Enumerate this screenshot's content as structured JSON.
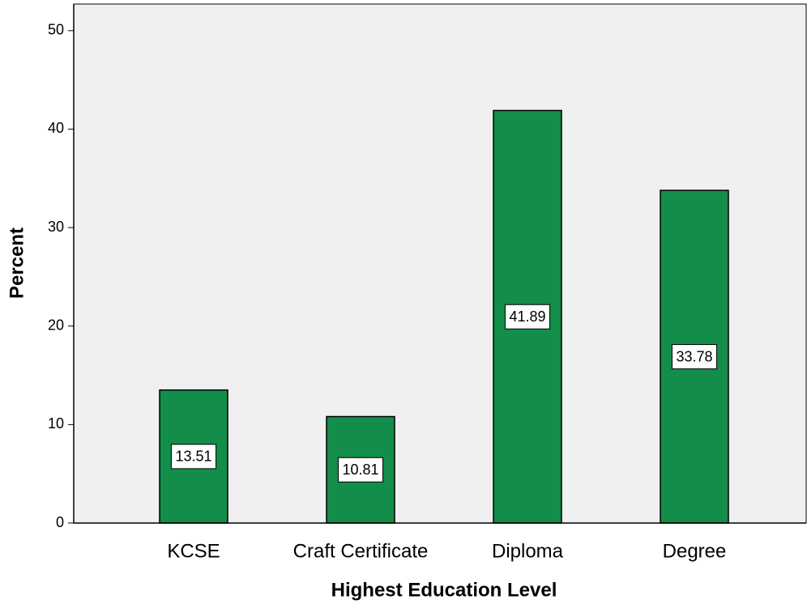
{
  "chart_data": {
    "type": "bar",
    "x_label": "Highest Education Level",
    "y_label": "Percent",
    "categories": [
      "KCSE",
      "Craft Certificate",
      "Diploma",
      "Degree"
    ],
    "values": [
      13.51,
      10.81,
      41.89,
      33.78
    ],
    "color": "#138d4a",
    "ylim": [
      0,
      52.7
    ],
    "yticks": [
      0,
      10,
      20,
      30,
      40,
      50
    ],
    "grid": false
  }
}
